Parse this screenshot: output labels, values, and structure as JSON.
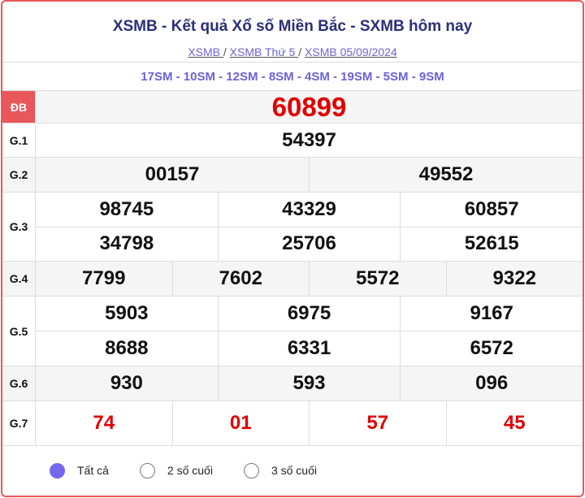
{
  "header": {
    "title": "XSMB - Kết quả Xổ số Miền Bắc - SXMB hôm nay",
    "breadcrumbs": [
      "XSMB ",
      "XSMB Thứ 5 ",
      "XSMB 05/09/2024"
    ],
    "separator": "/"
  },
  "codes": "17SM - 10SM - 12SM - 8SM - 4SM - 19SM - 5SM - 9SM",
  "prizes": {
    "db": {
      "label": "ĐB",
      "values": [
        "60899"
      ]
    },
    "g1": {
      "label": "G.1",
      "values": [
        "54397"
      ]
    },
    "g2": {
      "label": "G.2",
      "values": [
        "00157",
        "49552"
      ]
    },
    "g3": {
      "label": "G.3",
      "values": [
        "98745",
        "43329",
        "60857",
        "34798",
        "25706",
        "52615"
      ]
    },
    "g4": {
      "label": "G.4",
      "values": [
        "7799",
        "7602",
        "5572",
        "9322"
      ]
    },
    "g5": {
      "label": "G.5",
      "values": [
        "5903",
        "6975",
        "9167",
        "8688",
        "6331",
        "6572"
      ]
    },
    "g6": {
      "label": "G.6",
      "values": [
        "930",
        "593",
        "096"
      ]
    },
    "g7": {
      "label": "G.7",
      "values": [
        "74",
        "01",
        "57",
        "45"
      ]
    }
  },
  "filter": {
    "options": [
      "Tất cả",
      "2 số cuối",
      "3 số cuối"
    ],
    "selected": "Tất cả"
  },
  "colors": {
    "accent": "#6b62d9",
    "special": "#e00000",
    "border": "#e8585b"
  }
}
